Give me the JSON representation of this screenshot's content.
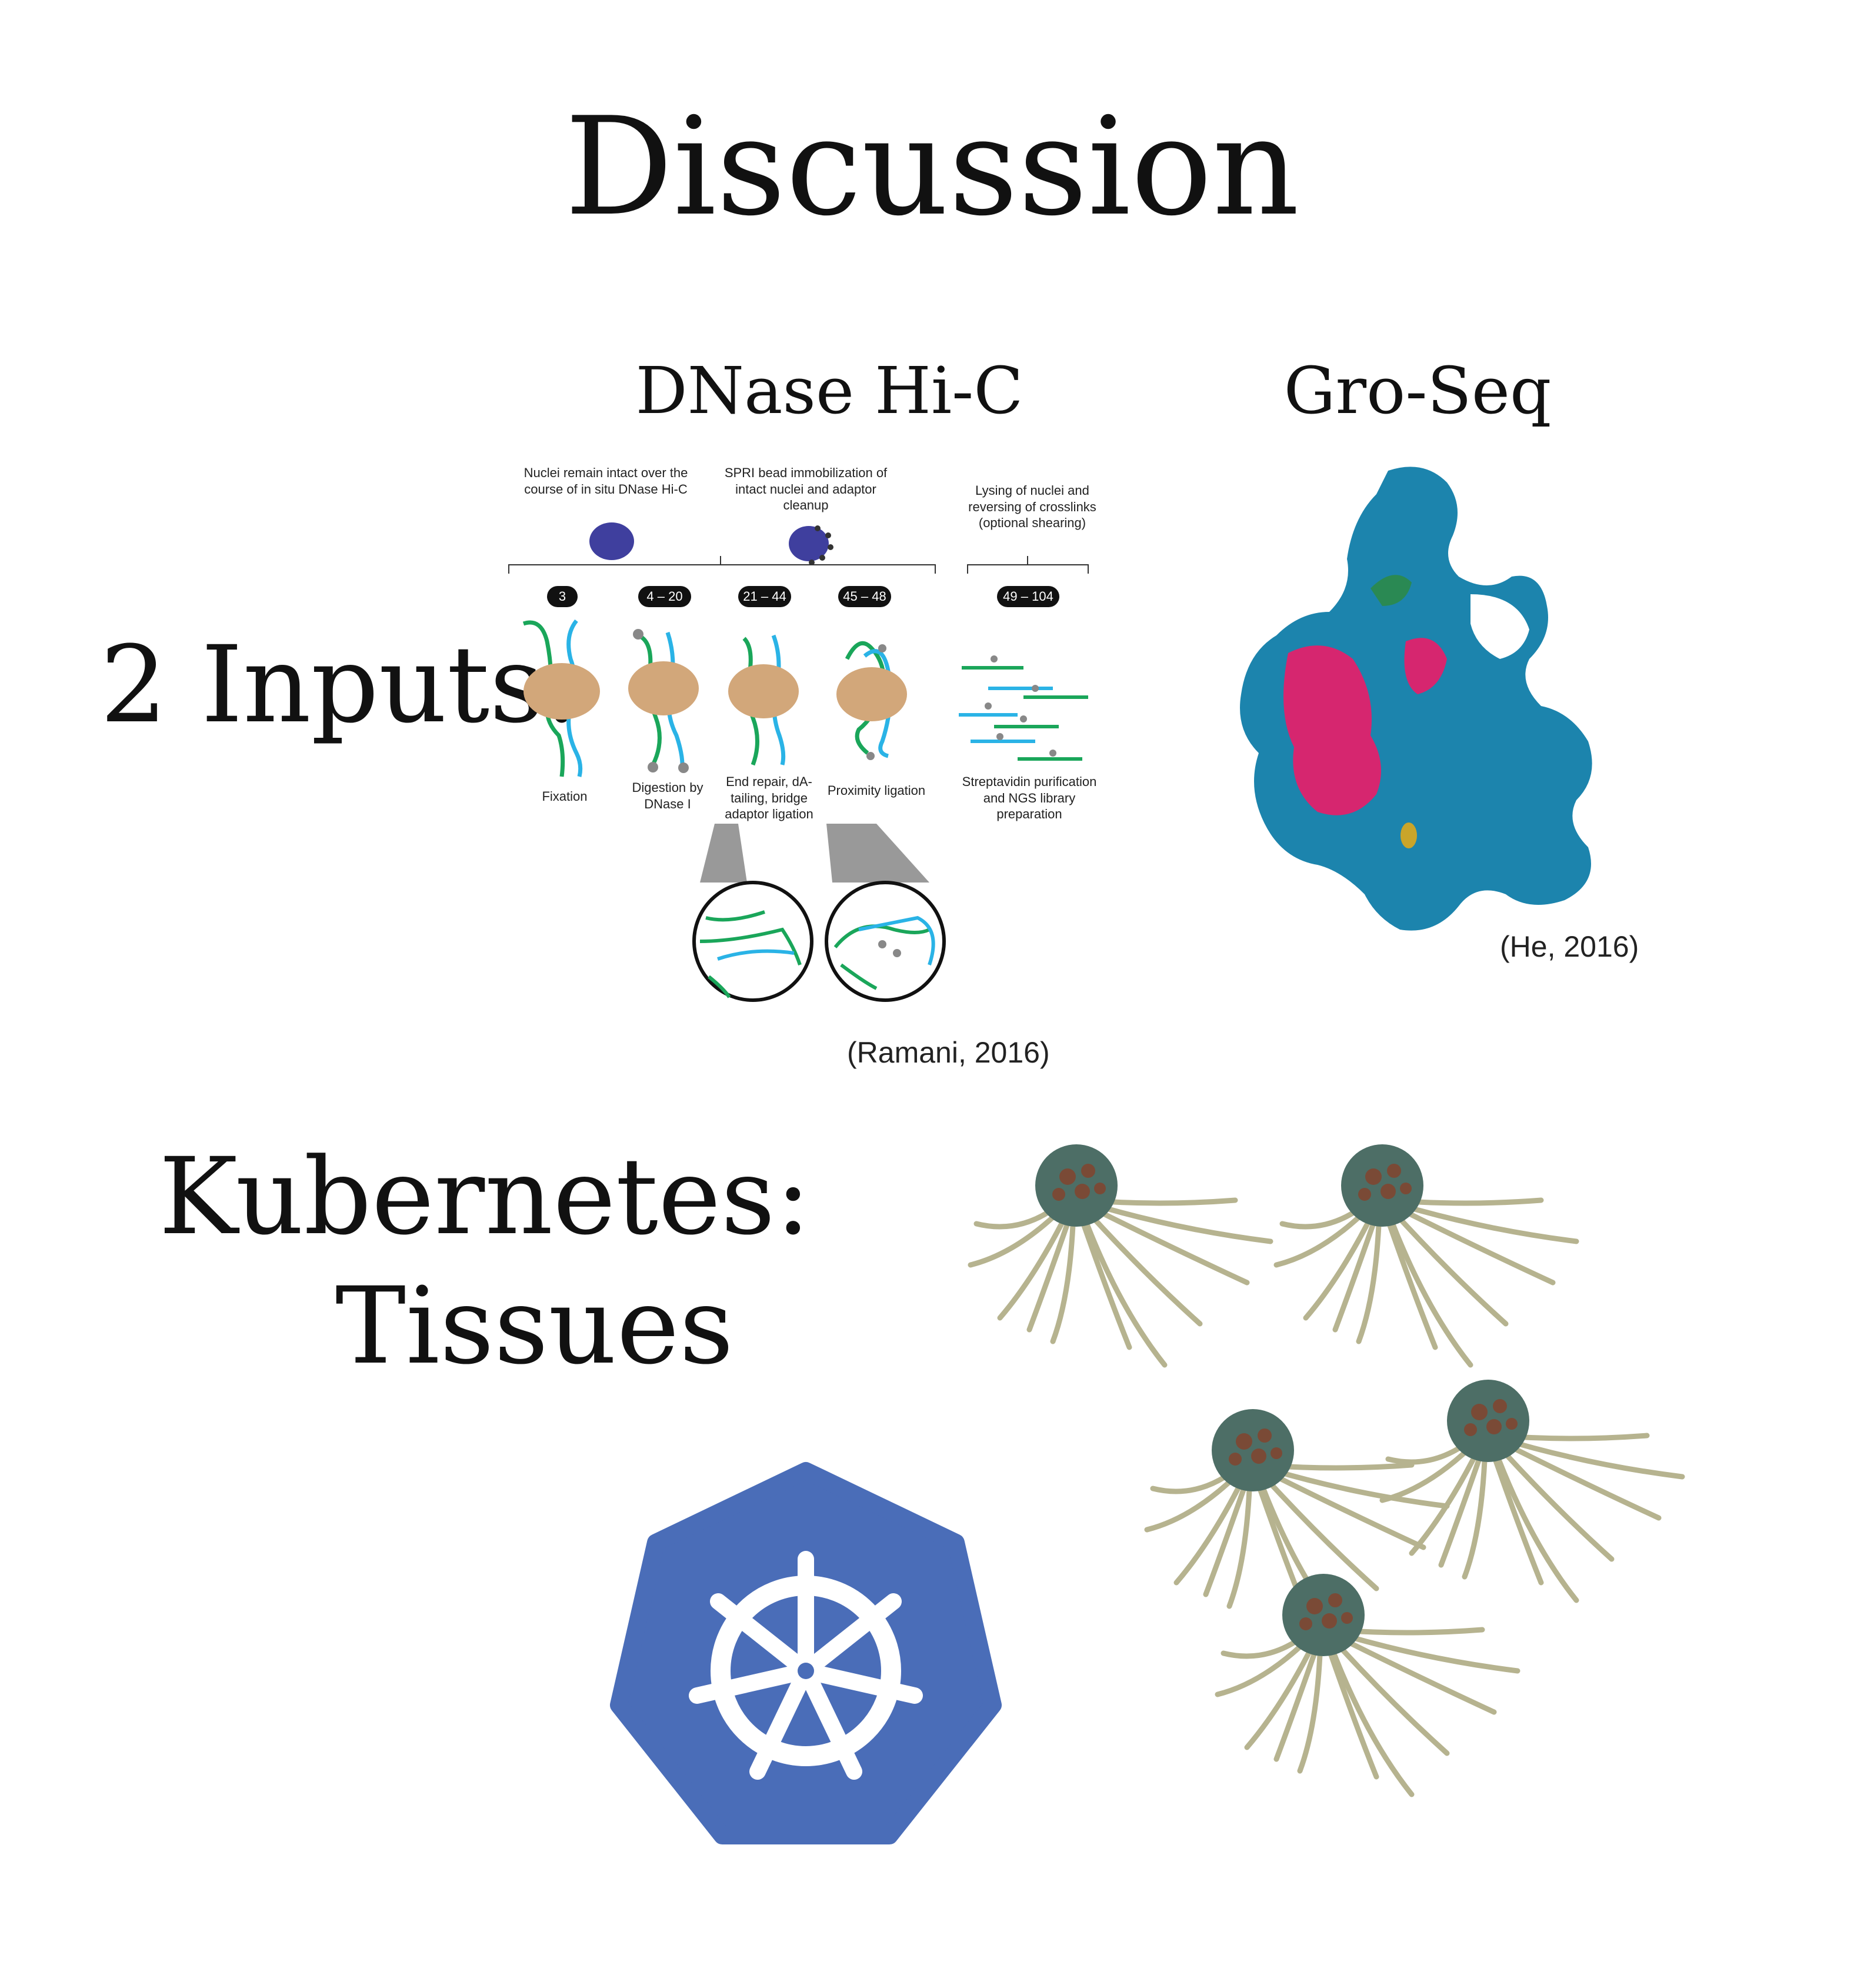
{
  "slide": {
    "title": "Discussion",
    "inputs_label": "2 Inputs:",
    "kube_label_line1": "Kubernetes:",
    "kube_label_line2": "Tissues"
  },
  "dnase": {
    "heading": "DNase Hi-C",
    "citation": "(Ramani, 2016)",
    "top_captions": [
      "Nuclei remain intact over the course of in situ DNase Hi-C",
      "SPRI bead immobilization of intact nuclei and adaptor cleanup",
      "Lysing of nuclei and reversing of crosslinks (optional shearing)"
    ],
    "step_counts": [
      "3",
      "4 – 20",
      "21 – 44",
      "45 – 48",
      "49 – 104"
    ],
    "step_labels": [
      "Fixation",
      "Digestion by DNase I",
      "End repair, dA-tailing, bridge adaptor ligation",
      "Proximity ligation",
      "Streptavidin purification and NGS library preparation"
    ]
  },
  "groseq": {
    "heading": "Gro-Seq",
    "citation": "(He, 2016)"
  },
  "colors": {
    "green_strand": "#1aa65a",
    "blue_strand": "#2ab3e6",
    "nucleosome": "#d2a77a",
    "nucleus": "#3f3f9e",
    "protein": "#1c84ad",
    "highlight": "#d6266f",
    "kubernetes": "#4a6db8"
  },
  "icons": {
    "kubernetes_logo": "ship-wheel-icon",
    "cells": "cell-cluster-icon"
  }
}
